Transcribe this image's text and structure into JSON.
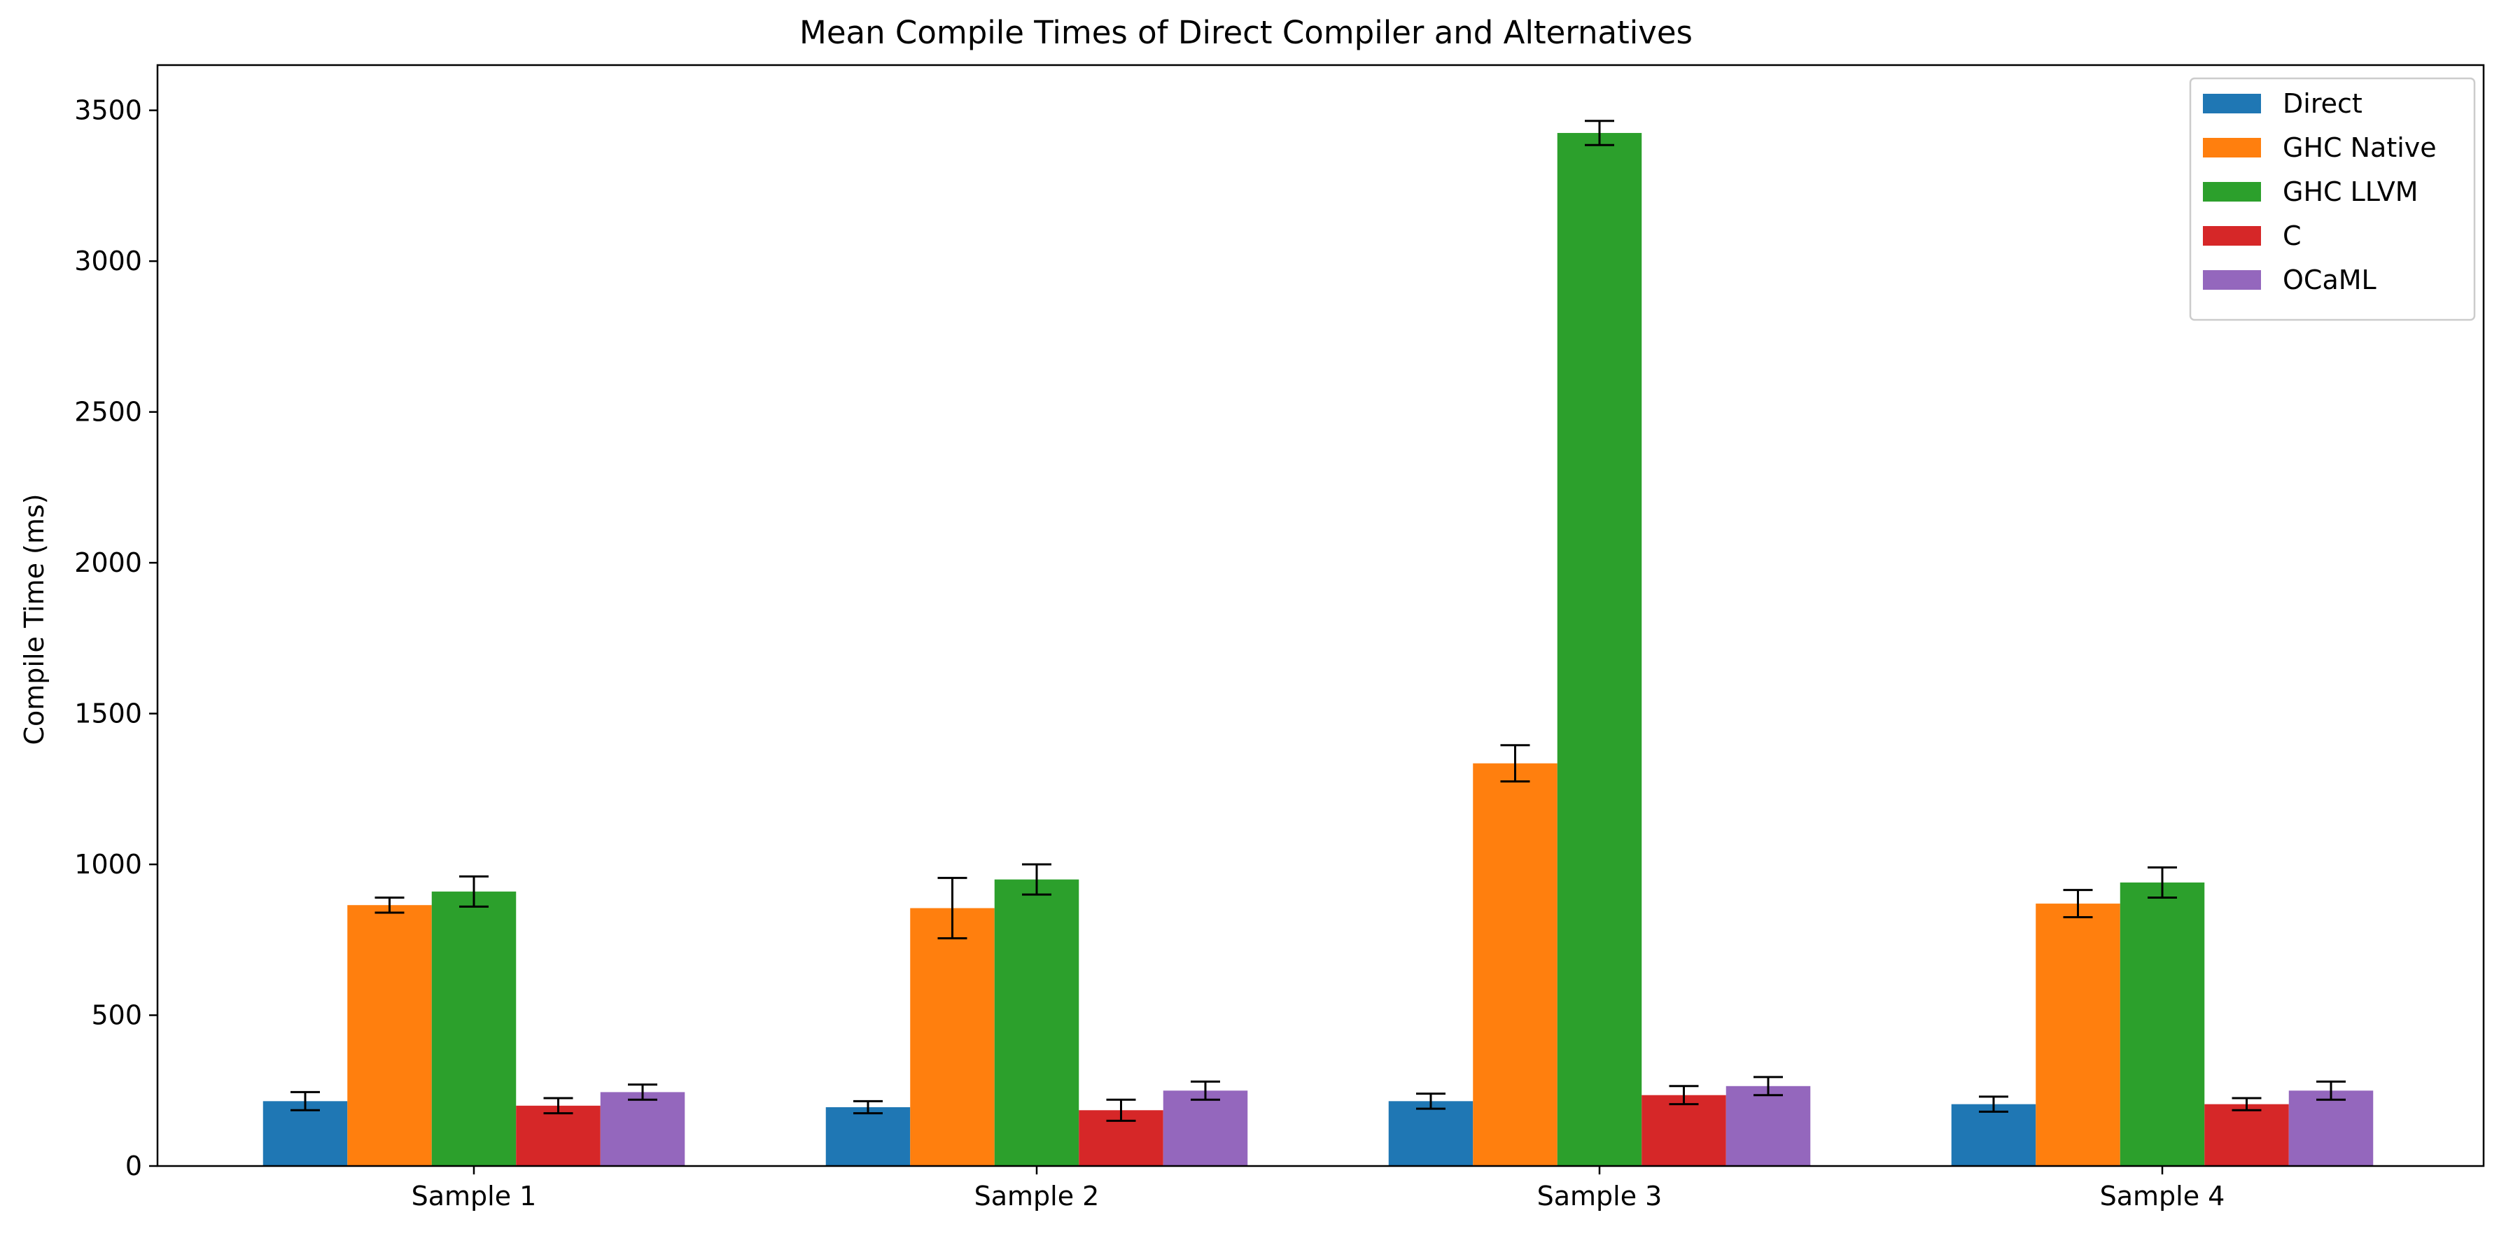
{
  "chart_data": {
    "type": "bar",
    "title": "Mean Compile Times of Direct Compiler and Alternatives",
    "xlabel": "",
    "ylabel": "Compile Time (ms)",
    "ylim": [
      0,
      3650
    ],
    "yticks": [
      0,
      500,
      1000,
      1500,
      2000,
      2500,
      3000,
      3500
    ],
    "categories": [
      "Sample 1",
      "Sample 2",
      "Sample 3",
      "Sample 4"
    ],
    "series": [
      {
        "name": "Direct",
        "color": "#1f77b4",
        "values": [
          215,
          195,
          215,
          205
        ],
        "errors": [
          30,
          20,
          25,
          25
        ]
      },
      {
        "name": "GHC Native",
        "color": "#ff7f0e",
        "values": [
          865,
          855,
          1335,
          870
        ],
        "errors": [
          25,
          100,
          60,
          45
        ]
      },
      {
        "name": "GHC LLVM",
        "color": "#2ca02c",
        "values": [
          910,
          950,
          3425,
          940
        ],
        "errors": [
          50,
          50,
          40,
          50
        ]
      },
      {
        "name": "C",
        "color": "#d62728",
        "values": [
          200,
          185,
          235,
          205
        ],
        "errors": [
          25,
          35,
          30,
          20
        ]
      },
      {
        "name": "OCaML",
        "color": "#9467bd",
        "values": [
          245,
          250,
          265,
          250
        ],
        "errors": [
          25,
          30,
          30,
          30
        ]
      }
    ],
    "grid": false,
    "legend": "top-right",
    "error_bars": true
  }
}
